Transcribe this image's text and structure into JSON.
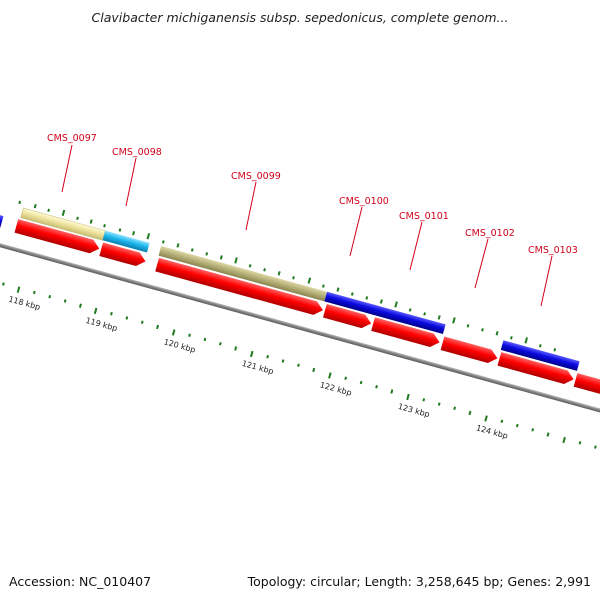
{
  "title": "Clavibacter michiganensis subsp. sepedonicus, complete genom...",
  "footer": {
    "accession": "Accession: NC_010407",
    "summary": "Topology: circular; Length: 3,258,645 bp; Genes: 2,991"
  },
  "colors": {
    "cds": "#ff0000",
    "blue": "#0a0adf",
    "cyan": "#1fb8ee",
    "khaki": "#eee49e",
    "olive": "#b8b27a",
    "backbone": "#808080",
    "tick": "#1f7a1f",
    "label": "#d0021b"
  },
  "kbp_labels": [
    "118 kbp",
    "119 kbp",
    "120 kbp",
    "121 kbp",
    "122 kbp",
    "123 kbp",
    "124 kbp"
  ],
  "gene_labels": [
    "CMS_0097",
    "CMS_0098",
    "CMS_0099",
    "CMS_0100",
    "CMS_0101",
    "CMS_0102",
    "CMS_0103"
  ]
}
